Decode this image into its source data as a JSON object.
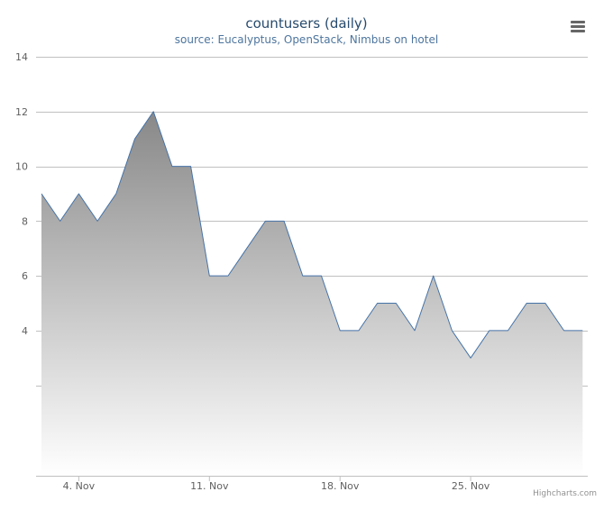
{
  "menu_icon": "hamburger-menu-icon",
  "credits": "Highcharts.com",
  "colors": {
    "line": "#4572a7",
    "grid": "#c0c0c0",
    "title": "#274b6d",
    "subtitle": "#4d759e",
    "axis_text": "#606060",
    "fill_top": "#888888",
    "fill_bottom": "#ffffff"
  },
  "chart_data": {
    "type": "area",
    "title": "countusers (daily)",
    "subtitle": "source: Eucalyptus, OpenStack, Nimbus on hotel",
    "xlabel": "",
    "ylabel": "",
    "x_ticks": [
      "4. Nov",
      "11. Nov",
      "18. Nov",
      "25. Nov"
    ],
    "y_ticks": [
      4,
      6,
      8,
      10,
      12,
      14
    ],
    "ylim": [
      -1.3,
      14
    ],
    "grid": true,
    "legend": "none",
    "series": [
      {
        "x": [
          "2013-11-02",
          "2013-11-03",
          "2013-11-04",
          "2013-11-05",
          "2013-11-06",
          "2013-11-07",
          "2013-11-08",
          "2013-11-09",
          "2013-11-10",
          "2013-11-11",
          "2013-11-12",
          "2013-11-13",
          "2013-11-14",
          "2013-11-15",
          "2013-11-16",
          "2013-11-17",
          "2013-11-18",
          "2013-11-19",
          "2013-11-20",
          "2013-11-21",
          "2013-11-22",
          "2013-11-23",
          "2013-11-24",
          "2013-11-25",
          "2013-11-26",
          "2013-11-27",
          "2013-11-28",
          "2013-11-29",
          "2013-11-30",
          "2013-12-01"
        ],
        "values": [
          9,
          8,
          9,
          8,
          9,
          11,
          12,
          10,
          10,
          6,
          6,
          7,
          8,
          8,
          6,
          6,
          4,
          4,
          5,
          5,
          4,
          6,
          4,
          3,
          4,
          4,
          5,
          5,
          4,
          4
        ]
      }
    ]
  }
}
